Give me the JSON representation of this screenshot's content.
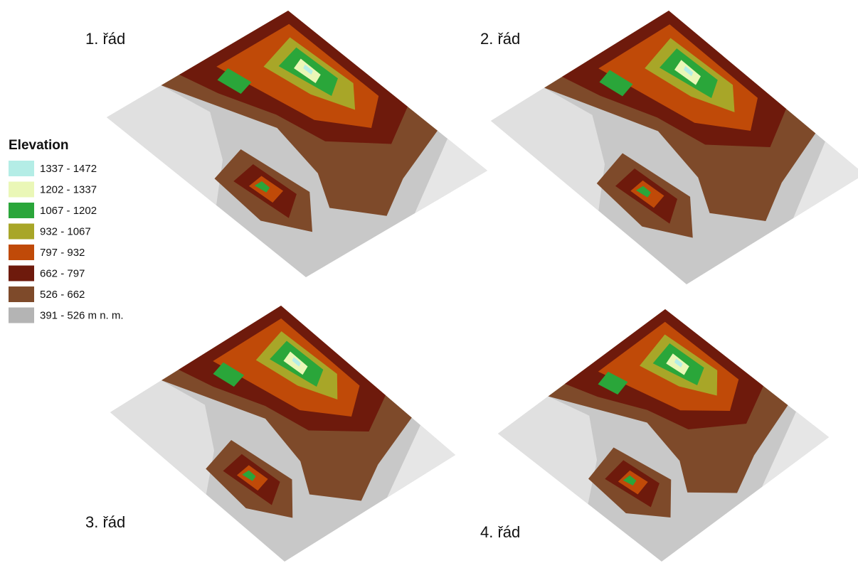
{
  "panels": [
    {
      "label": "1. řád"
    },
    {
      "label": "2. řád"
    },
    {
      "label": "3. řád"
    },
    {
      "label": "4. řád"
    }
  ],
  "legend": {
    "title": "Elevation",
    "items": [
      {
        "label": "1337 - 1472",
        "color": "#b4ede6"
      },
      {
        "label": "1202 - 1337",
        "color": "#eaf7b7"
      },
      {
        "label": "1067 - 1202",
        "color": "#2aa63a"
      },
      {
        "label": "932 - 1067",
        "color": "#a8a628"
      },
      {
        "label": "797 - 932",
        "color": "#c04a08"
      },
      {
        "label": "662 - 797",
        "color": "#6e1a0c"
      },
      {
        "label": "526 - 662",
        "color": "#7e4a2a"
      },
      {
        "label": "391 - 526 m n. m.",
        "color": "#b4b4b4"
      }
    ]
  }
}
